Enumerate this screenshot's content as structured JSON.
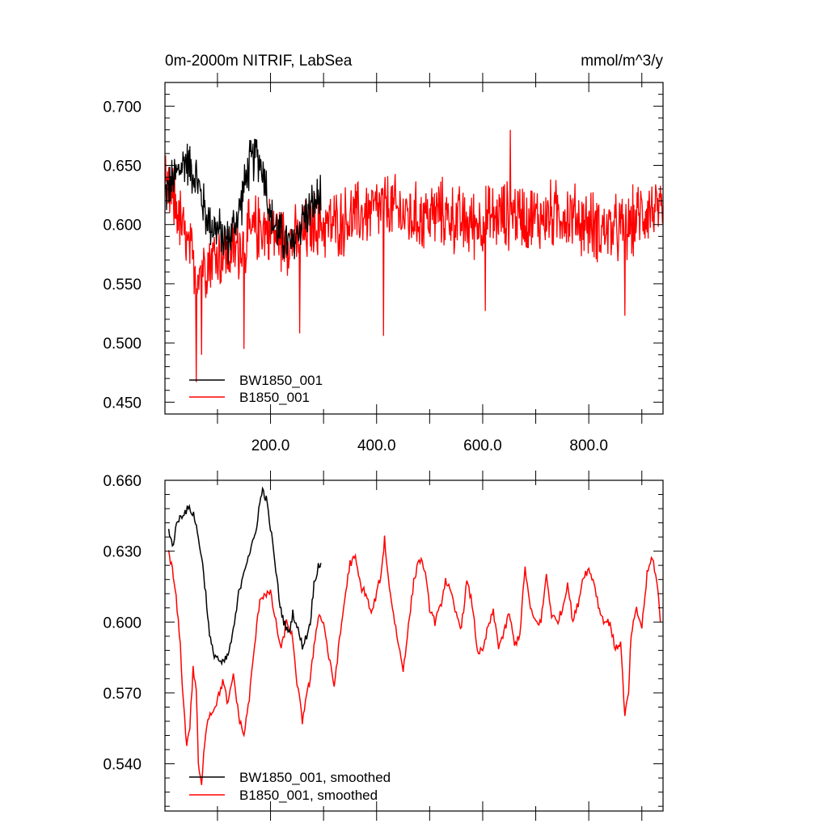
{
  "header": {
    "title": "0m-2000m NITRIF, LabSea",
    "units": "mmol/m^3/y"
  },
  "chart_data": [
    {
      "type": "line",
      "title": "0m-2000m NITRIF, LabSea",
      "units": "mmol/m^3/y",
      "xlim": [
        1,
        940
      ],
      "ylim": [
        0.44,
        0.72
      ],
      "xticks": [
        200,
        400,
        600,
        800
      ],
      "xtick_labels": [
        "200.0",
        "400.0",
        "600.0",
        "800.0"
      ],
      "yticks": [
        0.45,
        0.5,
        0.55,
        0.6,
        0.65,
        0.7
      ],
      "ytick_labels": [
        "0.450",
        "0.500",
        "0.550",
        "0.600",
        "0.650",
        "0.700"
      ],
      "grid": false,
      "legend_position": "bottom-left",
      "series": [
        {
          "name": "BW1850_001",
          "color": "#000000",
          "x_start": 1,
          "x_end": 295,
          "approx_keypoints": [
            [
              1,
              0.625
            ],
            [
              20,
              0.64
            ],
            [
              40,
              0.655
            ],
            [
              60,
              0.64
            ],
            [
              80,
              0.605
            ],
            [
              100,
              0.595
            ],
            [
              120,
              0.585
            ],
            [
              140,
              0.61
            ],
            [
              160,
              0.65
            ],
            [
              175,
              0.66
            ],
            [
              190,
              0.64
            ],
            [
              200,
              0.605
            ],
            [
              220,
              0.59
            ],
            [
              240,
              0.58
            ],
            [
              260,
              0.605
            ],
            [
              280,
              0.615
            ],
            [
              295,
              0.625
            ]
          ],
          "noise_amplitude": 0.025
        },
        {
          "name": "B1850_001",
          "color": "#ff0000",
          "x_start": 1,
          "x_end": 940,
          "approx_keypoints": [
            [
              1,
              0.625
            ],
            [
              20,
              0.62
            ],
            [
              40,
              0.585
            ],
            [
              60,
              0.56
            ],
            [
              80,
              0.57
            ],
            [
              100,
              0.575
            ],
            [
              120,
              0.575
            ],
            [
              150,
              0.585
            ],
            [
              180,
              0.6
            ],
            [
              220,
              0.59
            ],
            [
              250,
              0.585
            ],
            [
              280,
              0.6
            ],
            [
              320,
              0.6
            ],
            [
              380,
              0.61
            ],
            [
              420,
              0.615
            ],
            [
              470,
              0.605
            ],
            [
              520,
              0.61
            ],
            [
              570,
              0.6
            ],
            [
              620,
              0.605
            ],
            [
              660,
              0.61
            ],
            [
              700,
              0.605
            ],
            [
              750,
              0.61
            ],
            [
              800,
              0.6
            ],
            [
              840,
              0.595
            ],
            [
              870,
              0.595
            ],
            [
              900,
              0.61
            ],
            [
              920,
              0.615
            ],
            [
              940,
              0.6
            ]
          ],
          "noise_amplitude": 0.035,
          "spikes": [
            [
              60,
              0.467
            ],
            [
              70,
              0.49
            ],
            [
              150,
              0.495
            ],
            [
              255,
              0.508
            ],
            [
              413,
              0.506
            ],
            [
              605,
              0.527
            ],
            [
              652,
              0.68
            ],
            [
              868,
              0.523
            ]
          ]
        }
      ]
    },
    {
      "type": "line",
      "xlim": [
        1,
        940
      ],
      "ylim": [
        0.52,
        0.66
      ],
      "yticks": [
        0.54,
        0.57,
        0.6,
        0.63,
        0.66
      ],
      "ytick_labels": [
        "0.540",
        "0.570",
        "0.600",
        "0.630",
        "0.660"
      ],
      "grid": false,
      "legend_position": "bottom-left",
      "series": [
        {
          "name": "BW1850_001, smoothed",
          "color": "#000000",
          "x": [
            8,
            15,
            25,
            35,
            45,
            55,
            62,
            70,
            78,
            85,
            92,
            100,
            108,
            115,
            120,
            130,
            140,
            150,
            158,
            165,
            172,
            178,
            185,
            192,
            200,
            210,
            218,
            225,
            235,
            242,
            250,
            260,
            268,
            275,
            282,
            290,
            295
          ],
          "y": [
            0.64,
            0.632,
            0.643,
            0.646,
            0.648,
            0.646,
            0.638,
            0.628,
            0.612,
            0.594,
            0.587,
            0.585,
            0.582,
            0.584,
            0.586,
            0.596,
            0.612,
            0.622,
            0.628,
            0.632,
            0.638,
            0.648,
            0.656,
            0.652,
            0.64,
            0.622,
            0.607,
            0.6,
            0.595,
            0.604,
            0.598,
            0.59,
            0.594,
            0.6,
            0.616,
            0.624,
            0.625
          ]
        },
        {
          "name": "B1850_001, smoothed",
          "color": "#ff0000",
          "x": [
            8,
            15,
            22,
            30,
            36,
            42,
            48,
            54,
            60,
            64,
            70,
            76,
            82,
            90,
            100,
            110,
            120,
            130,
            140,
            150,
            160,
            170,
            180,
            190,
            200,
            210,
            220,
            230,
            240,
            248,
            254,
            260,
            268,
            275,
            282,
            290,
            300,
            310,
            320,
            330,
            340,
            350,
            360,
            370,
            380,
            390,
            400,
            410,
            415,
            420,
            430,
            440,
            450,
            460,
            470,
            480,
            490,
            500,
            510,
            520,
            530,
            540,
            550,
            560,
            570,
            580,
            590,
            600,
            610,
            620,
            630,
            640,
            650,
            660,
            670,
            680,
            690,
            700,
            710,
            720,
            730,
            740,
            750,
            760,
            770,
            780,
            790,
            800,
            810,
            820,
            830,
            840,
            850,
            860,
            868,
            875,
            880,
            890,
            900,
            910,
            920,
            930,
            935
          ],
          "y": [
            0.63,
            0.622,
            0.61,
            0.59,
            0.565,
            0.548,
            0.556,
            0.58,
            0.572,
            0.54,
            0.53,
            0.55,
            0.56,
            0.562,
            0.567,
            0.575,
            0.565,
            0.578,
            0.56,
            0.552,
            0.568,
            0.59,
            0.61,
            0.612,
            0.612,
            0.6,
            0.588,
            0.6,
            0.595,
            0.578,
            0.568,
            0.558,
            0.57,
            0.575,
            0.59,
            0.603,
            0.6,
            0.585,
            0.573,
            0.592,
            0.61,
            0.625,
            0.627,
            0.615,
            0.612,
            0.603,
            0.612,
            0.622,
            0.636,
            0.622,
            0.606,
            0.592,
            0.58,
            0.598,
            0.617,
            0.627,
            0.623,
            0.606,
            0.6,
            0.606,
            0.618,
            0.612,
            0.603,
            0.598,
            0.617,
            0.608,
            0.588,
            0.587,
            0.598,
            0.604,
            0.59,
            0.595,
            0.604,
            0.59,
            0.595,
            0.623,
            0.605,
            0.6,
            0.6,
            0.62,
            0.603,
            0.6,
            0.605,
            0.617,
            0.6,
            0.608,
            0.62,
            0.622,
            0.617,
            0.605,
            0.6,
            0.6,
            0.588,
            0.592,
            0.56,
            0.57,
            0.595,
            0.605,
            0.598,
            0.62,
            0.628,
            0.614,
            0.6
          ]
        }
      ]
    }
  ]
}
